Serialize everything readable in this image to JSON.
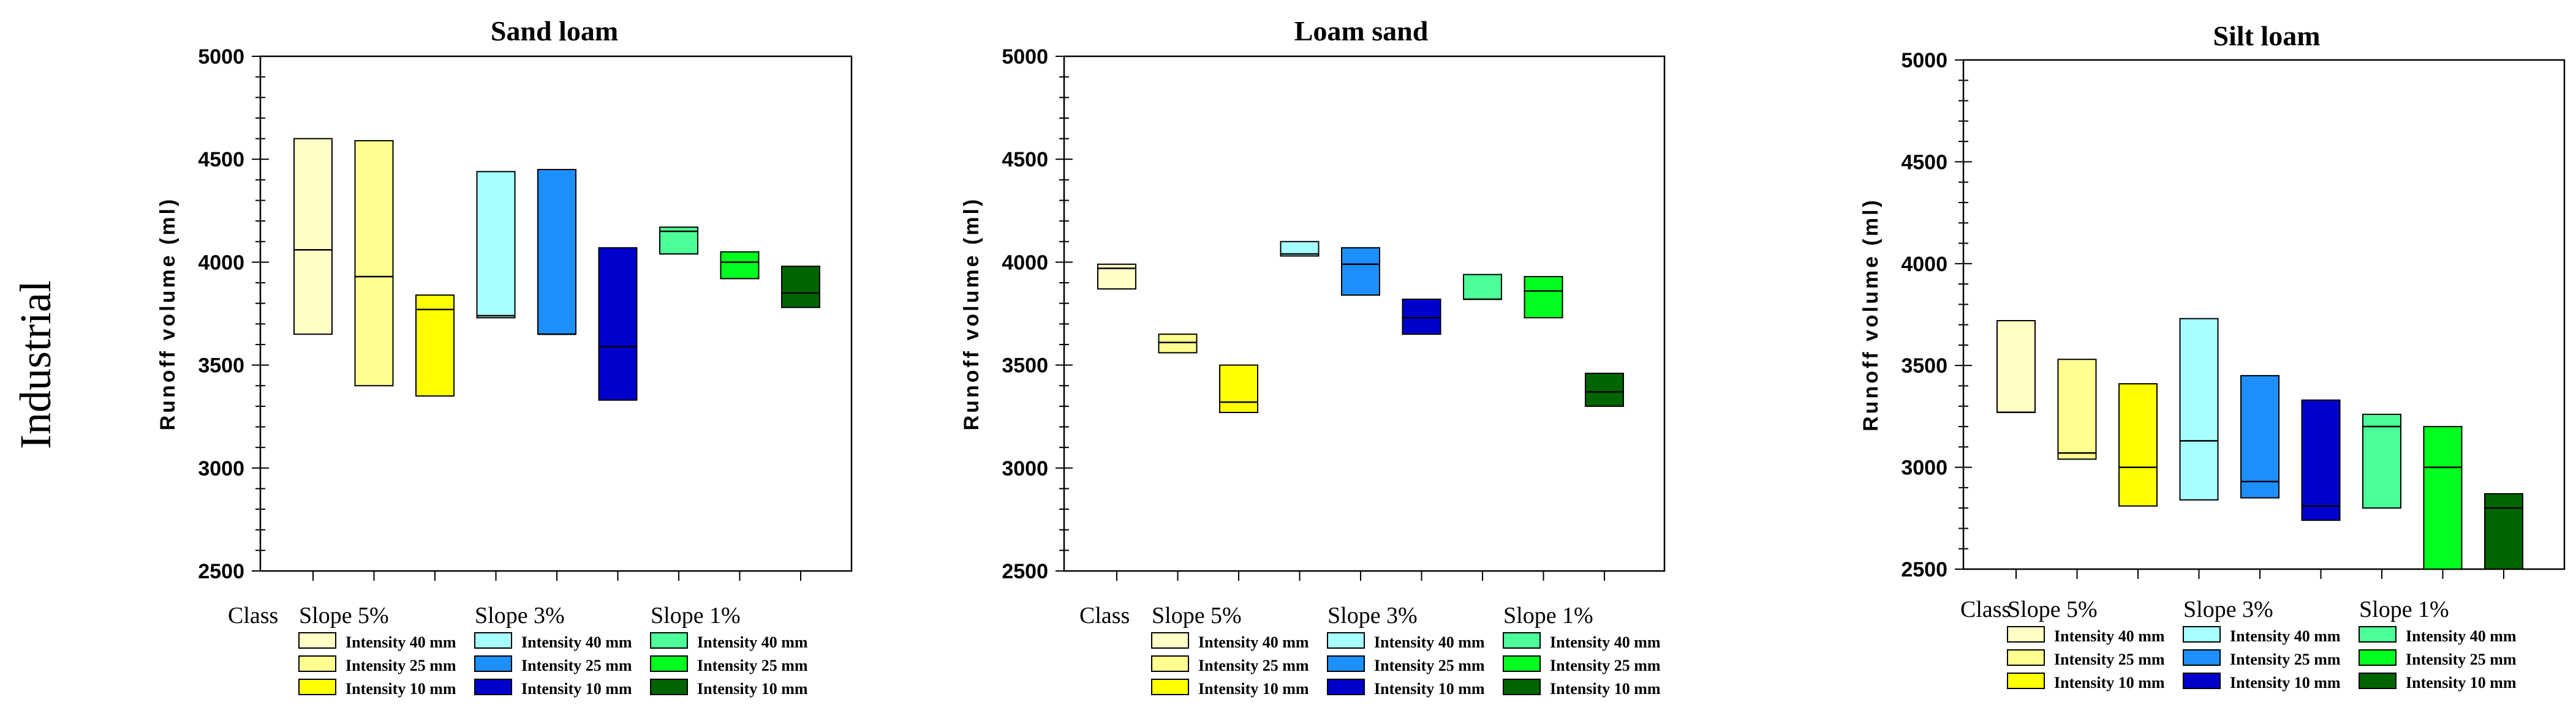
{
  "row_label": "Industrial",
  "colors": {
    "int40_s5": "#ffffc6",
    "int25_s5": "#ffff8f",
    "int10_s5": "#ffff00",
    "int40_s3": "#a8ffff",
    "int25_s3": "#1e8fff",
    "int10_s3": "#0000cc",
    "int40_s1": "#4cff96",
    "int25_s1": "#00ff1e",
    "int10_s1": "#006400"
  },
  "chart_data": [
    {
      "type": "box",
      "title": "Sand loam",
      "ylabel": "Runoff volume (ml)",
      "ylim": [
        2500,
        5000
      ],
      "yticks": [
        2500,
        3000,
        3500,
        4000,
        4500,
        5000
      ],
      "class_label": "Class",
      "group_labels": [
        "Slope 5%",
        "Slope 3%",
        "Slope 1%"
      ],
      "legend": [
        [
          "Intensity 40 mm",
          "Intensity 40 mm",
          "Intensity 40 mm"
        ],
        [
          "Intensity 25 mm",
          "Intensity 25 mm",
          "Intensity 25 mm"
        ],
        [
          "Intensity 10 mm",
          "Intensity 10 mm",
          "Intensity 10 mm"
        ]
      ],
      "boxes": [
        {
          "low": 3650,
          "median": 4060,
          "high": 4600
        },
        {
          "low": 3400,
          "median": 3930,
          "high": 4590
        },
        {
          "low": 3350,
          "median": 3770,
          "high": 3840
        },
        {
          "low": 3730,
          "median": 3740,
          "high": 4440
        },
        {
          "low": 3650,
          "median": 3650,
          "high": 4450
        },
        {
          "low": 3330,
          "median": 3590,
          "high": 4070
        },
        {
          "low": 4040,
          "median": 4150,
          "high": 4170
        },
        {
          "low": 3920,
          "median": 4000,
          "high": 4050
        },
        {
          "low": 3780,
          "median": 3850,
          "high": 3980
        }
      ]
    },
    {
      "type": "box",
      "title": "Loam sand",
      "ylabel": "Runoff volume (ml)",
      "ylim": [
        2500,
        5000
      ],
      "yticks": [
        2500,
        3000,
        3500,
        4000,
        4500,
        5000
      ],
      "class_label": "Class",
      "group_labels": [
        "Slope 5%",
        "Slope 3%",
        "Slope 1%"
      ],
      "legend": [
        [
          "Intensity 40 mm",
          "Intensity 40 mm",
          "Intensity 40 mm"
        ],
        [
          "Intensity 25 mm",
          "Intensity 25 mm",
          "Intensity 25 mm"
        ],
        [
          "Intensity 10 mm",
          "Intensity 10 mm",
          "Intensity 10 mm"
        ]
      ],
      "boxes": [
        {
          "low": 3870,
          "median": 3970,
          "high": 3990
        },
        {
          "low": 3560,
          "median": 3610,
          "high": 3650
        },
        {
          "low": 3270,
          "median": 3320,
          "high": 3500
        },
        {
          "low": 4030,
          "median": 4040,
          "high": 4100
        },
        {
          "low": 3840,
          "median": 3990,
          "high": 4070
        },
        {
          "low": 3650,
          "median": 3730,
          "high": 3820
        },
        {
          "low": 3820,
          "median": 3820,
          "high": 3940
        },
        {
          "low": 3730,
          "median": 3860,
          "high": 3930
        },
        {
          "low": 3300,
          "median": 3370,
          "high": 3460
        }
      ]
    },
    {
      "type": "box",
      "title": "Silt loam",
      "ylabel": "Runoff volume (ml)",
      "ylim": [
        2500,
        5000
      ],
      "yticks": [
        2500,
        3000,
        3500,
        4000,
        4500,
        5000
      ],
      "class_label": "Class",
      "group_labels": [
        "Slope 5%",
        "Slope 3%",
        "Slope 1%"
      ],
      "legend": [
        [
          "Intensity 40 mm",
          "Intensity 40 mm",
          "Intensity 40 mm"
        ],
        [
          "Intensity 25 mm",
          "Intensity 25 mm",
          "Intensity 25 mm"
        ],
        [
          "Intensity 10 mm",
          "Intensity 10 mm",
          "Intensity 10 mm"
        ]
      ],
      "boxes": [
        {
          "low": 3270,
          "median": 3270,
          "high": 3720
        },
        {
          "low": 3040,
          "median": 3070,
          "high": 3530
        },
        {
          "low": 2810,
          "median": 3000,
          "high": 3410
        },
        {
          "low": 2840,
          "median": 3130,
          "high": 3730
        },
        {
          "low": 2850,
          "median": 2930,
          "high": 3450
        },
        {
          "low": 2740,
          "median": 2810,
          "high": 3330
        },
        {
          "low": 2800,
          "median": 3200,
          "high": 3260
        },
        {
          "low": 2500,
          "median": 3000,
          "high": 3200
        },
        {
          "low": 2500,
          "median": 2800,
          "high": 2870
        }
      ]
    }
  ]
}
